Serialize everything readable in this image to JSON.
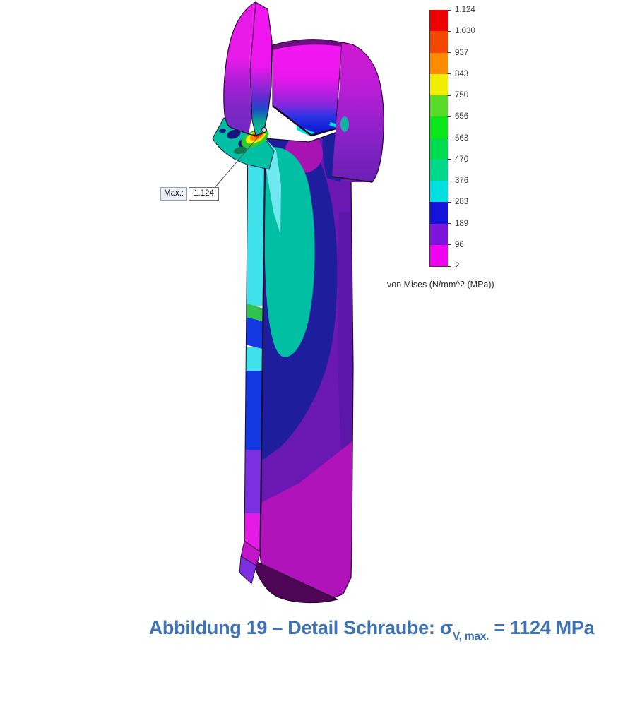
{
  "caption": {
    "full_text": "Abbildung 19 – Detail Schraube: σV, max. = 1124 MPa",
    "prefix": "Abbildung 19 – Detail Schraube: σ",
    "subscript": "V, max.",
    "suffix": " = 1124 MPa",
    "color": "#3d72b5"
  },
  "annotation": {
    "label": "Max.:",
    "value": "1.124"
  },
  "legend": {
    "title": "von Mises (N/mm^2 (MPa))"
  },
  "chart_data": {
    "type": "heatmap",
    "title": "FEA von-Mises stress contour plot of a screw (half-section detail view)",
    "model_subject": "Schraube (screw) shown in section with stress color bands",
    "max_value_mpa": 1124,
    "max_point_label": "Max.: 1.124",
    "colorbar": {
      "label": "von Mises (N/mm^2 (MPa))",
      "orientation": "vertical",
      "range_mpa": [
        2,
        1124
      ],
      "tick_labels": [
        "1.124",
        "1.030",
        "937",
        "843",
        "750",
        "656",
        "563",
        "470",
        "376",
        "283",
        "189",
        "96",
        "2"
      ],
      "tick_values_mpa": [
        1124,
        1030,
        937,
        843,
        750,
        656,
        563,
        470,
        376,
        283,
        189,
        96,
        2
      ],
      "band_colors_top_to_bottom": [
        "#ee0000",
        "#f34700",
        "#ff8c00",
        "#f2ee00",
        "#58dc28",
        "#0ae618",
        "#00dc50",
        "#00d88c",
        "#00e0e0",
        "#1414d8",
        "#7c14dc",
        "#f000f0"
      ]
    },
    "annotations": [
      "Max.: 1.124"
    ]
  },
  "model_colors": {
    "head_magenta": "#ee16ee",
    "shaft_navy": "#1d1d9e",
    "shaft_purple": "#6a17b4",
    "shaft_teal": "#00bfa2",
    "strip_cyan": "#3fe2ea",
    "bottom_dark": "#4e0556",
    "hotspot_red": "#ee1100"
  }
}
